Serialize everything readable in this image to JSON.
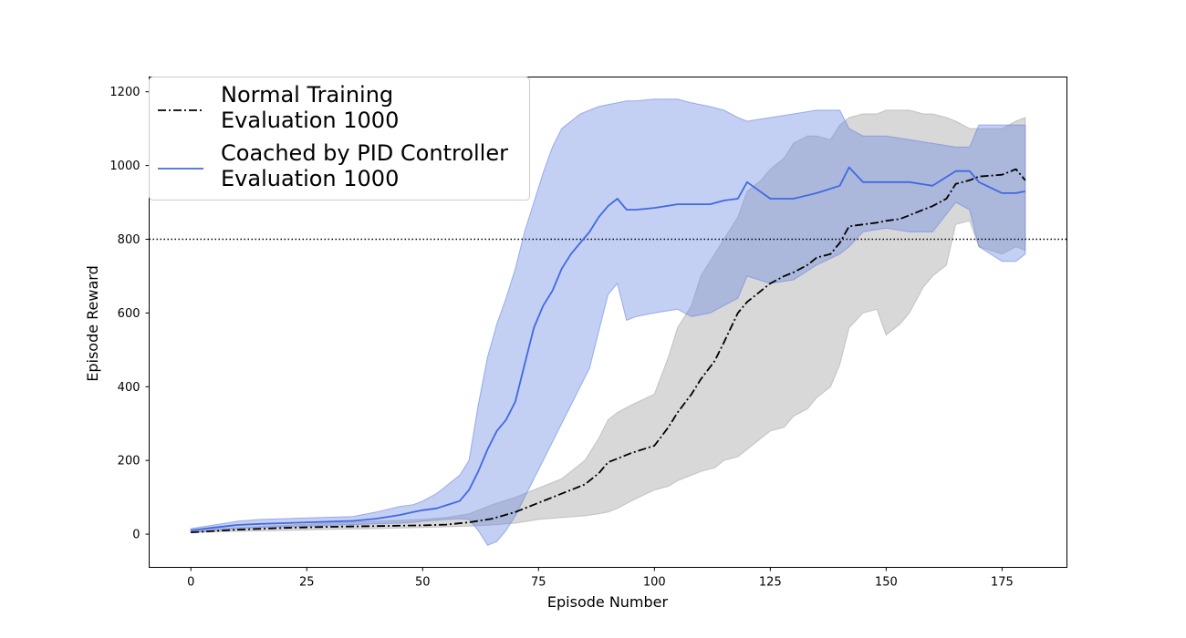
{
  "chart_data": {
    "type": "line",
    "xlabel": "Episode Number",
    "ylabel": "Episode Reward",
    "xlim": [
      -9,
      189
    ],
    "ylim": [
      -90,
      1240
    ],
    "xticks": [
      0,
      25,
      50,
      75,
      100,
      125,
      150,
      175
    ],
    "yticks": [
      0,
      200,
      400,
      600,
      800,
      1000,
      1200
    ],
    "grid": false,
    "legend_position": "top-left",
    "reference_line": {
      "y": 800,
      "style": "dotted",
      "color": "#000000"
    },
    "series": [
      {
        "name": "Normal Training\nEvaluation 1000",
        "style": "dashdot",
        "color": "#000000",
        "band_color": "#a9a9a9",
        "x": [
          0,
          10,
          20,
          30,
          40,
          50,
          55,
          60,
          65,
          70,
          75,
          80,
          85,
          88,
          90,
          92,
          95,
          100,
          103,
          105,
          108,
          110,
          113,
          115,
          118,
          120,
          123,
          125,
          128,
          130,
          133,
          135,
          138,
          140,
          142,
          145,
          148,
          150,
          153,
          155,
          158,
          160,
          163,
          165,
          168,
          170,
          175,
          178,
          180
        ],
        "values": [
          5,
          12,
          17,
          20,
          22,
          24,
          26,
          32,
          42,
          60,
          85,
          110,
          135,
          165,
          195,
          205,
          220,
          240,
          290,
          330,
          380,
          420,
          470,
          520,
          600,
          630,
          660,
          680,
          700,
          710,
          730,
          750,
          760,
          790,
          835,
          840,
          845,
          850,
          855,
          865,
          880,
          890,
          910,
          950,
          960,
          970,
          975,
          990,
          960
        ],
        "lower": [
          5,
          8,
          10,
          13,
          15,
          18,
          20,
          22,
          25,
          30,
          40,
          45,
          50,
          55,
          60,
          70,
          90,
          120,
          130,
          145,
          160,
          170,
          180,
          200,
          210,
          230,
          260,
          280,
          290,
          320,
          340,
          370,
          400,
          460,
          560,
          600,
          610,
          540,
          570,
          600,
          670,
          700,
          730,
          840,
          850,
          780,
          760,
          780,
          770
        ],
        "upper": [
          12,
          18,
          24,
          30,
          35,
          40,
          45,
          55,
          80,
          100,
          125,
          150,
          200,
          260,
          310,
          330,
          350,
          380,
          480,
          560,
          620,
          700,
          760,
          800,
          860,
          930,
          960,
          990,
          1020,
          1060,
          1080,
          1080,
          1070,
          1110,
          1130,
          1140,
          1140,
          1150,
          1150,
          1150,
          1140,
          1140,
          1130,
          1120,
          1100,
          1100,
          1100,
          1120,
          1130
        ]
      },
      {
        "name": "Coached by PID Controller\nEvaluation 1000",
        "style": "solid",
        "color": "#4169e1",
        "band_color": "#6a86e0",
        "x": [
          0,
          5,
          10,
          15,
          20,
          25,
          30,
          35,
          40,
          45,
          48,
          50,
          53,
          55,
          58,
          60,
          62,
          64,
          66,
          68,
          70,
          72,
          74,
          76,
          78,
          80,
          82,
          84,
          86,
          88,
          90,
          92,
          94,
          96,
          100,
          105,
          108,
          112,
          115,
          118,
          120,
          125,
          130,
          135,
          140,
          142,
          145,
          150,
          155,
          160,
          165,
          168,
          170,
          175,
          178,
          180
        ],
        "values": [
          10,
          18,
          25,
          28,
          30,
          32,
          34,
          36,
          42,
          52,
          60,
          65,
          70,
          78,
          90,
          120,
          170,
          230,
          280,
          310,
          360,
          460,
          560,
          620,
          660,
          720,
          760,
          790,
          820,
          860,
          890,
          910,
          880,
          880,
          885,
          895,
          895,
          895,
          905,
          910,
          955,
          910,
          910,
          925,
          945,
          995,
          955,
          955,
          955,
          945,
          985,
          985,
          955,
          925,
          925,
          930
        ],
        "lower": [
          5,
          10,
          15,
          18,
          20,
          22,
          24,
          26,
          28,
          30,
          32,
          35,
          38,
          40,
          42,
          40,
          10,
          -30,
          -20,
          10,
          50,
          100,
          150,
          200,
          250,
          300,
          350,
          400,
          450,
          550,
          650,
          680,
          580,
          590,
          600,
          610,
          590,
          600,
          620,
          640,
          700,
          680,
          690,
          730,
          760,
          780,
          820,
          830,
          820,
          820,
          900,
          880,
          780,
          740,
          740,
          760
        ],
        "upper": [
          15,
          25,
          35,
          40,
          42,
          44,
          46,
          48,
          60,
          75,
          80,
          90,
          110,
          130,
          160,
          200,
          350,
          480,
          570,
          640,
          720,
          820,
          900,
          980,
          1050,
          1100,
          1120,
          1140,
          1150,
          1160,
          1165,
          1170,
          1175,
          1175,
          1180,
          1180,
          1170,
          1160,
          1150,
          1130,
          1120,
          1130,
          1140,
          1150,
          1150,
          1100,
          1080,
          1080,
          1070,
          1060,
          1050,
          1050,
          1110,
          1110,
          1110,
          1110
        ]
      }
    ]
  }
}
